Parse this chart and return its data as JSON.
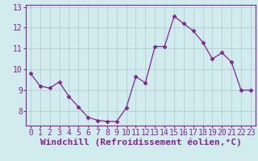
{
  "x": [
    0,
    1,
    2,
    3,
    4,
    5,
    6,
    7,
    8,
    9,
    10,
    11,
    12,
    13,
    14,
    15,
    16,
    17,
    18,
    19,
    20,
    21,
    22,
    23
  ],
  "y": [
    9.8,
    9.2,
    9.1,
    9.4,
    8.7,
    8.2,
    7.7,
    7.55,
    7.5,
    7.5,
    8.15,
    9.65,
    9.35,
    11.1,
    11.1,
    12.55,
    12.2,
    11.85,
    11.3,
    10.5,
    10.8,
    10.35,
    9.0,
    9.0
  ],
  "line_color": "#882299",
  "marker": "D",
  "marker_size": 2.5,
  "background_color": "#d0ecec",
  "grid_color": "#aacccc",
  "xlabel": "Windchill (Refroidissement éolien,°C)",
  "tick_fontsize": 7,
  "xlabel_fontsize": 8,
  "xlim": [
    -0.5,
    23.5
  ],
  "ylim": [
    7.3,
    13.1
  ],
  "yticks": [
    8,
    9,
    10,
    11,
    12,
    13
  ],
  "xticks": [
    0,
    1,
    2,
    3,
    4,
    5,
    6,
    7,
    8,
    9,
    10,
    11,
    12,
    13,
    14,
    15,
    16,
    17,
    18,
    19,
    20,
    21,
    22,
    23
  ]
}
